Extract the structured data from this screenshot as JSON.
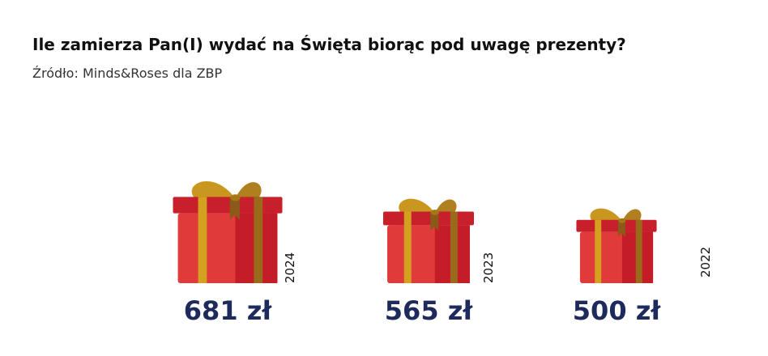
{
  "chart_data": {
    "type": "pictogram",
    "title": "Ile zamierza Pan(I) wydać na Święta biorąc pod uwagę prezenty?",
    "subtitle": "Źródło: Minds&Roses dla ZBP",
    "categories": [
      "2024",
      "2023",
      "2022"
    ],
    "values": [
      681,
      565,
      500
    ],
    "value_labels": [
      "681 zł",
      "565 zł",
      "500 zł"
    ],
    "color": "#e03a3a"
  }
}
